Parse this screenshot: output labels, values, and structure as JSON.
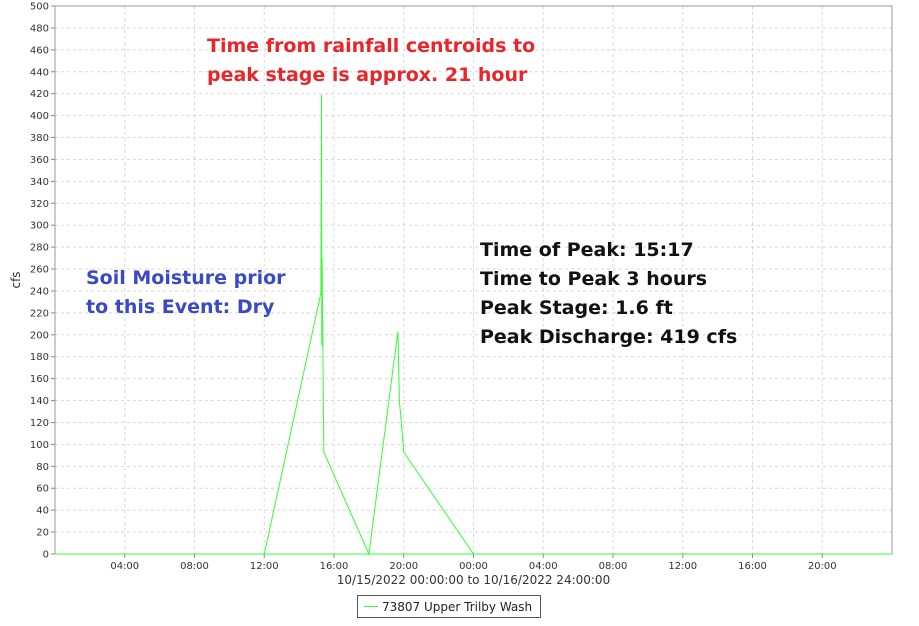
{
  "chart_data": {
    "type": "line",
    "ylabel": "cfs",
    "xlabel": "10/15/2022 00:00:00 to 10/16/2022 24:00:00",
    "ylim": [
      0,
      500
    ],
    "yticks": [
      0,
      20,
      40,
      60,
      80,
      100,
      120,
      140,
      160,
      180,
      200,
      220,
      240,
      260,
      280,
      300,
      320,
      340,
      360,
      380,
      400,
      420,
      440,
      460,
      480,
      500
    ],
    "xlim": [
      "10/15/2022 00:00",
      "10/16/2022 24:00"
    ],
    "xticks": [
      {
        "x": "10/15/2022 04:00",
        "label": "04:00"
      },
      {
        "x": "10/15/2022 08:00",
        "label": "08:00"
      },
      {
        "x": "10/15/2022 12:00",
        "label": "12:00"
      },
      {
        "x": "10/15/2022 16:00",
        "label": "16:00"
      },
      {
        "x": "10/15/2022 20:00",
        "label": "20:00"
      },
      {
        "x": "10/16/2022 00:00",
        "label": "00:00"
      },
      {
        "x": "10/16/2022 04:00",
        "label": "04:00"
      },
      {
        "x": "10/16/2022 08:00",
        "label": "08:00"
      },
      {
        "x": "10/16/2022 12:00",
        "label": "12:00"
      },
      {
        "x": "10/16/2022 16:00",
        "label": "16:00"
      },
      {
        "x": "10/16/2022 20:00",
        "label": "20:00"
      }
    ],
    "grid": true,
    "legend_position": "bottom",
    "series": [
      {
        "name": "73807 Upper Trilby Wash",
        "color": "#33ff33",
        "points": [
          {
            "x": "10/15/2022 12:00",
            "y": 0
          },
          {
            "x": "10/15/2022 15:15",
            "y": 238
          },
          {
            "x": "10/15/2022 15:17",
            "y": 419
          },
          {
            "x": "10/15/2022 15:18",
            "y": 190
          },
          {
            "x": "10/15/2022 15:19",
            "y": 270
          },
          {
            "x": "10/15/2022 15:25",
            "y": 93
          },
          {
            "x": "10/15/2022 18:00",
            "y": 0
          },
          {
            "x": "10/15/2022 19:40",
            "y": 203
          },
          {
            "x": "10/15/2022 19:45",
            "y": 140
          },
          {
            "x": "10/15/2022 20:00",
            "y": 93
          },
          {
            "x": "10/16/2022 00:00",
            "y": 0
          }
        ]
      }
    ]
  },
  "annotations": {
    "red_text": "Time from rainfall centroids to\npeak stage is approx. 21 hour",
    "blue_text": "Soil Moisture prior\nto this Event: Dry",
    "black_text": "Time of Peak: 15:17\nTime to Peak 3 hours\nPeak Stage: 1.6 ft\nPeak Discharge: 419 cfs"
  },
  "legend": {
    "label": "73807 Upper Trilby Wash"
  }
}
